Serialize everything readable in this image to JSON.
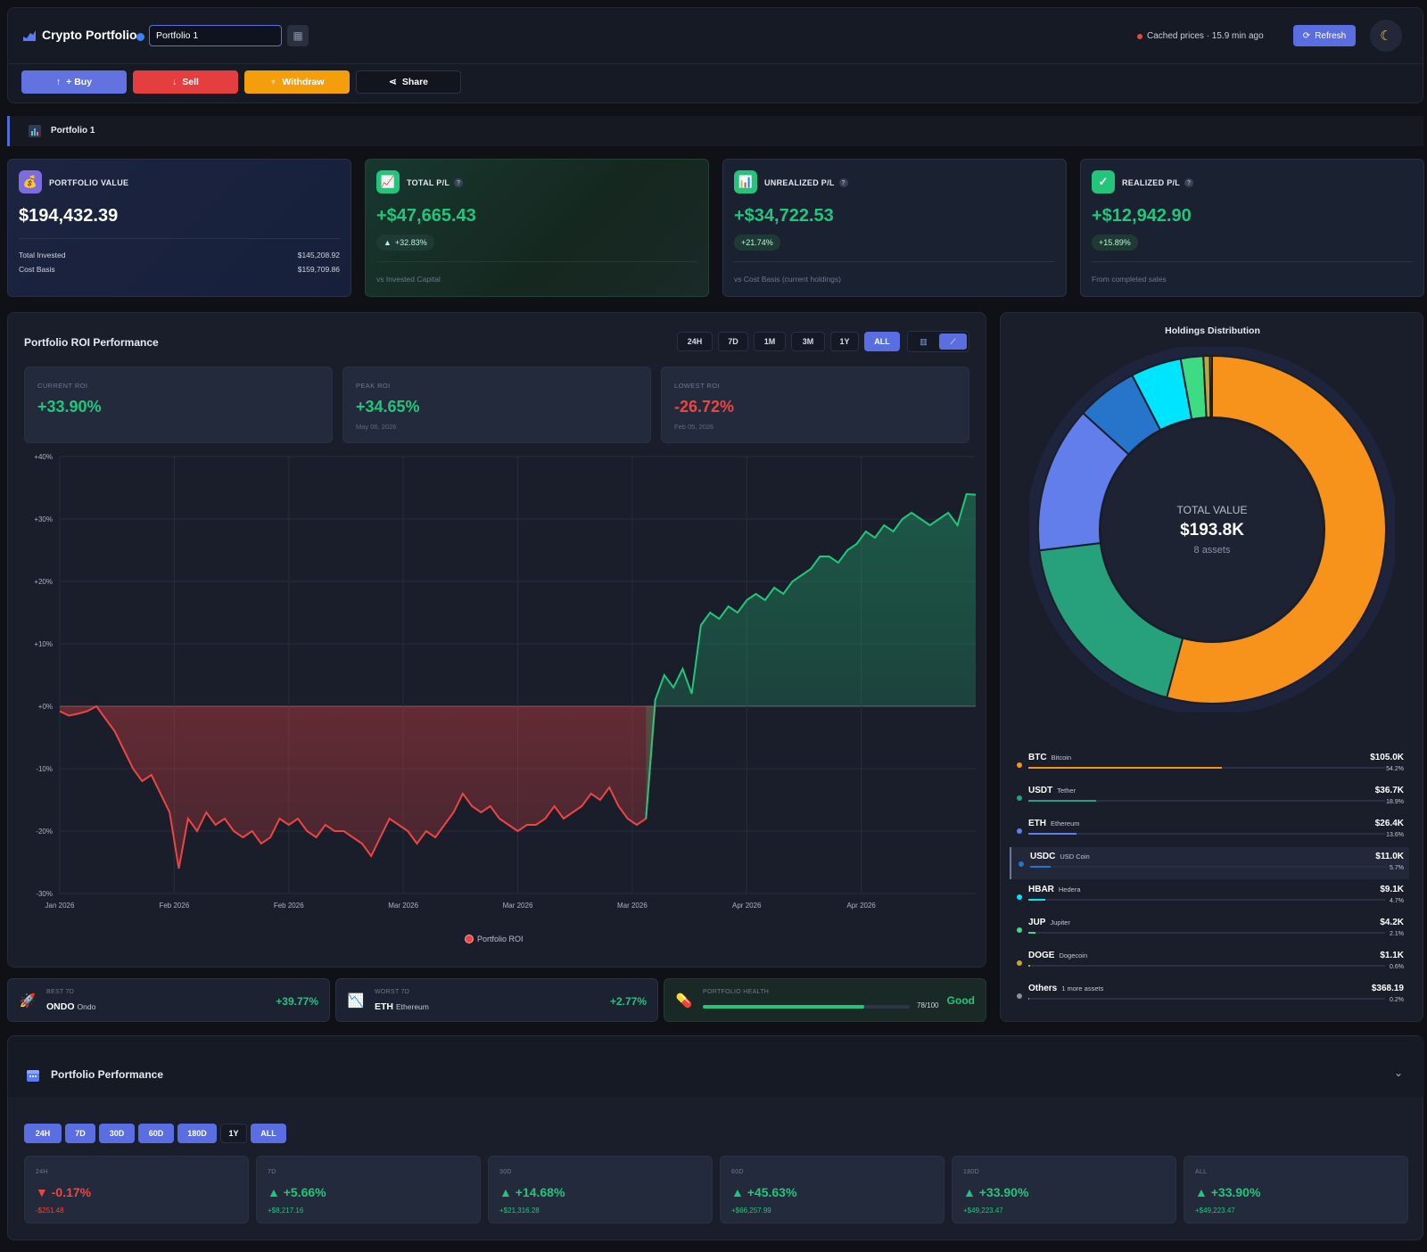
{
  "header": {
    "app_title": "Crypto Portfolio",
    "portfolio_name": "Portfolio 1",
    "cached_text": "Cached prices · 15.9 min ago",
    "refresh_label": "Refresh",
    "theme_icon": "moon-icon"
  },
  "actions": {
    "buy": "+ Buy",
    "sell": "Sell",
    "withdraw": "Withdraw",
    "share": "Share"
  },
  "portfolio_bar": {
    "label": "Portfolio 1"
  },
  "cards": {
    "portfolio_value": {
      "title": "PORTFOLIO VALUE",
      "value": "$194,432.39",
      "invested_label": "Total Invested",
      "invested_value": "$145,208.92",
      "cost_label": "Cost Basis",
      "cost_value": "$159,709.86"
    },
    "total_pl": {
      "title": "TOTAL P/L",
      "value": "+$47,665.43",
      "badge": "+32.83%",
      "foot": "vs Invested Capital"
    },
    "unrealized_pl": {
      "title": "UNREALIZED P/L",
      "value": "+$34,722.53",
      "badge": "+21.74%",
      "foot": "vs Cost Basis (current holdings)"
    },
    "realized_pl": {
      "title": "REALIZED P/L",
      "value": "+$12,942.90",
      "badge": "+15.89%",
      "foot": "From completed sales"
    }
  },
  "roi": {
    "title": "Portfolio ROI Performance",
    "timeframes": [
      "24H",
      "7D",
      "1M",
      "3M",
      "1Y",
      "ALL"
    ],
    "active_timeframe": "ALL",
    "current": {
      "label": "CURRENT ROI",
      "value": "+33.90%"
    },
    "peak": {
      "label": "PEAK ROI",
      "value": "+34.65%",
      "date": "May 06, 2026"
    },
    "lowest": {
      "label": "LOWEST ROI",
      "value": "-26.72%",
      "date": "Feb 05, 2026"
    },
    "legend": "Portfolio ROI"
  },
  "chart_data": [
    {
      "type": "area",
      "title": "Portfolio ROI Performance",
      "y_ticks": [
        "+40%",
        "+30%",
        "+20%",
        "+10%",
        "+0%",
        "-10%",
        "-20%",
        "-30%"
      ],
      "ylim": [
        -30,
        40
      ],
      "x_ticks": [
        "Jan 2026",
        "Feb 2026",
        "Feb 2026",
        "Mar 2026",
        "Mar 2026",
        "Mar 2026",
        "Apr 2026",
        "Apr 2026"
      ],
      "series": [
        {
          "name": "Portfolio ROI",
          "x_index_range": [
            0,
            100
          ],
          "values": [
            -0.8,
            -1.5,
            -1.2,
            -0.8,
            0,
            -2,
            -4,
            -7,
            -10,
            -12,
            -11,
            -14,
            -17,
            -26,
            -18,
            -20,
            -17,
            -19,
            -18,
            -20,
            -21,
            -20,
            -22,
            -21,
            -18,
            -19,
            -18,
            -20,
            -21,
            -19,
            -20,
            -20,
            -21,
            -22,
            -24,
            -21,
            -18,
            -19,
            -20,
            -22,
            -20,
            -21,
            -19,
            -17,
            -14,
            -16,
            -17,
            -16,
            -18,
            -19,
            -20,
            -19,
            -19,
            -18,
            -16,
            -18,
            -17,
            -16,
            -14,
            -15,
            -13,
            -16,
            -18,
            -19,
            -18,
            1,
            5,
            3,
            6,
            2,
            13,
            15,
            14,
            16,
            15,
            17,
            18,
            17,
            19,
            18,
            20,
            21,
            22,
            24,
            24,
            23,
            25,
            26,
            28,
            27,
            29,
            28,
            30,
            31,
            30,
            29,
            30,
            31,
            29,
            34,
            33.9
          ]
        }
      ]
    },
    {
      "type": "pie",
      "title": "Holdings Distribution",
      "center_label": "TOTAL VALUE",
      "center_value": "$193.8K",
      "center_sub": "8 assets",
      "categories": [
        "BTC",
        "USDT",
        "ETH",
        "USDC",
        "HBAR",
        "JUP",
        "DOGE",
        "Others"
      ],
      "values": [
        54.2,
        18.9,
        13.6,
        5.7,
        4.7,
        2.1,
        0.6,
        0.2
      ],
      "colors": [
        "#f7931a",
        "#26a17b",
        "#627eea",
        "#2775ca",
        "#00e5ff",
        "#3ddc84",
        "#c2a633",
        "#8a8f9c"
      ]
    }
  ],
  "holdings": {
    "title": "Holdings Distribution",
    "items": [
      {
        "symbol": "BTC",
        "name": "Bitcoin",
        "value": "$105.0K",
        "pct": "54.2%",
        "share": 54.2,
        "color": "#f7931a"
      },
      {
        "symbol": "USDT",
        "name": "Tether",
        "value": "$36.7K",
        "pct": "18.9%",
        "share": 18.9,
        "color": "#26a17b"
      },
      {
        "symbol": "ETH",
        "name": "Ethereum",
        "value": "$26.4K",
        "pct": "13.6%",
        "share": 13.6,
        "color": "#627eea"
      },
      {
        "symbol": "USDC",
        "name": "USD Coin",
        "value": "$11.0K",
        "pct": "5.7%",
        "share": 5.7,
        "color": "#2775ca"
      },
      {
        "symbol": "HBAR",
        "name": "Hedera",
        "value": "$9.1K",
        "pct": "4.7%",
        "share": 4.7,
        "color": "#00e5ff"
      },
      {
        "symbol": "JUP",
        "name": "Jupiter",
        "value": "$4.2K",
        "pct": "2.1%",
        "share": 2.1,
        "color": "#3ddc84"
      },
      {
        "symbol": "DOGE",
        "name": "Dogecoin",
        "value": "$1.1K",
        "pct": "0.6%",
        "share": 0.6,
        "color": "#c2a633"
      },
      {
        "symbol": "Others",
        "name": "1 more assets",
        "value": "$368.19",
        "pct": "0.2%",
        "share": 0.2,
        "color": "#8a8f9c"
      }
    ]
  },
  "mini": {
    "best": {
      "label": "BEST 7D",
      "symbol": "ONDO",
      "name": "Ondo",
      "value": "+39.77%"
    },
    "worst": {
      "label": "WORST 7D",
      "symbol": "ETH",
      "name": "Ethereum",
      "value": "+2.77%"
    },
    "health": {
      "label": "PORTFOLIO HEALTH",
      "score": "78/100",
      "score_value": 78,
      "status": "Good"
    }
  },
  "performance": {
    "title": "Portfolio Performance",
    "timeframes": [
      "24H",
      "7D",
      "30D",
      "60D",
      "180D",
      "1Y",
      "ALL"
    ],
    "cards": [
      {
        "label": "24H",
        "value": "-0.17%",
        "sub": "-$251.48",
        "dir": "down"
      },
      {
        "label": "7D",
        "value": "+5.66%",
        "sub": "+$8,217.16",
        "dir": "up"
      },
      {
        "label": "30D",
        "value": "+14.68%",
        "sub": "+$21,316.28",
        "dir": "up"
      },
      {
        "label": "60D",
        "value": "+45.63%",
        "sub": "+$66,257.99",
        "dir": "up"
      },
      {
        "label": "180D",
        "value": "+33.90%",
        "sub": "+$49,223.47",
        "dir": "up"
      },
      {
        "label": "ALL",
        "value": "+33.90%",
        "sub": "+$49,223.47",
        "dir": "up"
      }
    ]
  }
}
